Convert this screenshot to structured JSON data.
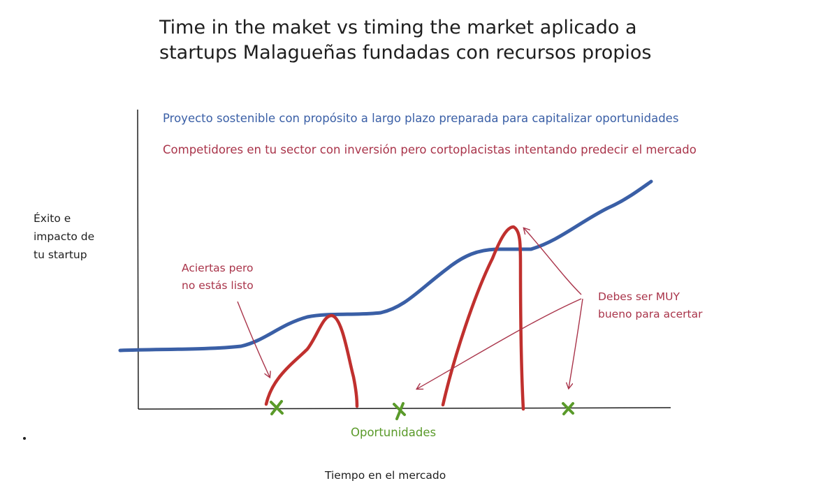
{
  "title": {
    "line1": "Time in the maket vs timing the market aplicado a",
    "line2": "startups Malagueñas fundadas con recursos propios"
  },
  "legend": {
    "blue": "Proyecto sostenible con propósito a largo plazo preparada para capitalizar oportunidades",
    "red": "Competidores en tu sector con inversión pero cortoplacistas intentando predecir el mercado"
  },
  "y_axis_label": [
    "Éxito e",
    "impacto de",
    "tu startup"
  ],
  "x_axis_label": "Tiempo en el mercado",
  "annotations": {
    "aciertas": [
      "Aciertas pero",
      "no estás listo"
    ],
    "debes": [
      "Debes ser MUY",
      "bueno para acertar"
    ]
  },
  "opportunities_label": "Oportunidades",
  "opportunity_count": 3,
  "colors": {
    "blue": "#3a5fa6",
    "red": "#c0302e",
    "red_text": "#a9344a",
    "green": "#5a9a2a",
    "ink": "#1e1e1e"
  }
}
